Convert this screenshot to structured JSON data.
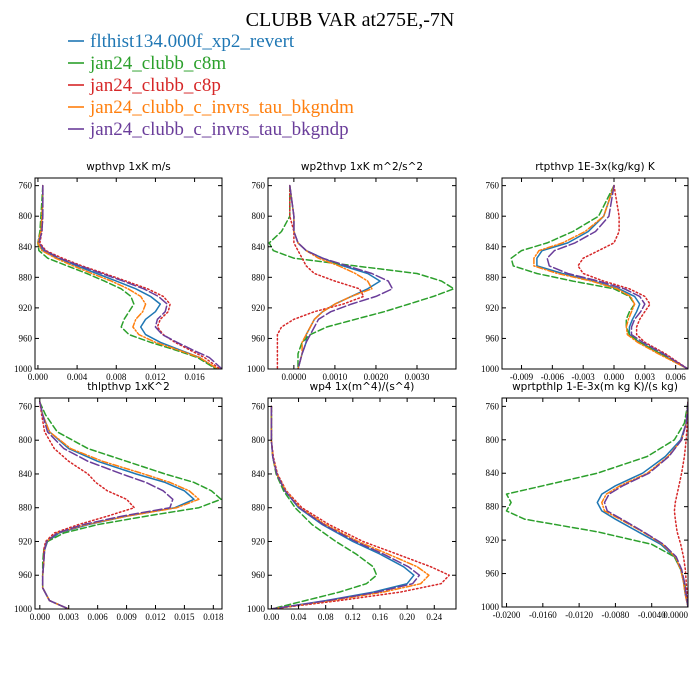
{
  "figure": {
    "title": "CLUBB VAR at275E,-7N"
  },
  "legend": [
    {
      "label": "flthist134.000f_xp2_revert",
      "color": "#1f77b4",
      "dash": "solid"
    },
    {
      "label": "jan24_clubb_c8m",
      "color": "#2ca02c",
      "dash": "dashed"
    },
    {
      "label": "jan24_clubb_c8p",
      "color": "#d62728",
      "dash": "dotted"
    },
    {
      "label": "jan24_clubb_c_invrs_tau_bkgndm",
      "color": "#ff7f0e",
      "dash": "dashdot"
    },
    {
      "label": "jan24_clubb_c_invrs_tau_bkgndp",
      "color": "#6a3d9a",
      "dash": "longdash"
    }
  ],
  "chart_data": [
    {
      "type": "line",
      "title": "wpthvp   1xK m/s",
      "xlim": [
        -0.0003,
        0.0188
      ],
      "ylim": [
        1000,
        750
      ],
      "xticks": [
        0.0,
        0.004,
        0.008,
        0.012,
        0.016
      ],
      "xticklabels": [
        "0.000",
        "0.004",
        "0.008",
        "0.012",
        "0.016"
      ],
      "yticks": [
        760,
        800,
        840,
        880,
        920,
        960,
        1000
      ],
      "yticklabels": [
        "760",
        "800",
        "840",
        "880",
        "920",
        "960",
        "1000"
      ],
      "y": [
        760,
        780,
        800,
        820,
        835,
        845,
        855,
        865,
        875,
        885,
        895,
        905,
        915,
        925,
        935,
        945,
        955,
        965,
        975,
        985,
        1000
      ],
      "series": [
        {
          "values": [
            0.0005,
            0.0005,
            0.0004,
            0.0003,
            0.0,
            0.0005,
            0.002,
            0.004,
            0.006,
            0.008,
            0.01,
            0.0115,
            0.0125,
            0.012,
            0.011,
            0.0105,
            0.011,
            0.0125,
            0.0145,
            0.0165,
            0.0183
          ]
        },
        {
          "values": [
            0.0005,
            0.0004,
            0.0003,
            0.0002,
            0.0,
            0.0001,
            0.001,
            0.003,
            0.005,
            0.0068,
            0.0085,
            0.0095,
            0.0098,
            0.0093,
            0.0088,
            0.0085,
            0.0093,
            0.0115,
            0.014,
            0.0163,
            0.0182
          ]
        },
        {
          "values": [
            0.0005,
            0.0005,
            0.0005,
            0.0004,
            0.0002,
            0.0008,
            0.0025,
            0.0045,
            0.0068,
            0.009,
            0.0112,
            0.0128,
            0.0135,
            0.0133,
            0.0125,
            0.0122,
            0.0128,
            0.014,
            0.0155,
            0.017,
            0.0186
          ]
        },
        {
          "values": [
            0.0005,
            0.0005,
            0.0004,
            0.0003,
            0.0,
            0.0004,
            0.0018,
            0.0036,
            0.0055,
            0.0075,
            0.0092,
            0.0105,
            0.011,
            0.0107,
            0.01,
            0.0097,
            0.0103,
            0.012,
            0.0143,
            0.0165,
            0.0184
          ]
        },
        {
          "values": [
            0.0005,
            0.0005,
            0.0005,
            0.0004,
            0.0001,
            0.0007,
            0.0022,
            0.0043,
            0.0065,
            0.0087,
            0.0108,
            0.0123,
            0.0132,
            0.013,
            0.0122,
            0.012,
            0.0127,
            0.0142,
            0.0158,
            0.0175,
            0.0188
          ]
        }
      ]
    },
    {
      "type": "line",
      "title": "wp2thvp   1xK m^2/s^2",
      "xlim": [
        -0.00063,
        0.00395
      ],
      "ylim": [
        1000,
        750
      ],
      "xticks": [
        0.0,
        0.001,
        0.002,
        0.003
      ],
      "xticklabels": [
        "0.0000",
        "0.0010",
        "0.0020",
        "0.0030"
      ],
      "yticks": [
        760,
        800,
        840,
        880,
        920,
        960,
        1000
      ],
      "yticklabels": [
        "760",
        "800",
        "840",
        "880",
        "920",
        "960",
        "1000"
      ],
      "y": [
        760,
        800,
        820,
        835,
        845,
        855,
        865,
        875,
        885,
        895,
        905,
        915,
        925,
        935,
        945,
        955,
        965,
        980,
        1000
      ],
      "series": [
        {
          "values": [
            -0.0001,
            0.0,
            0.0,
            0.0001,
            0.0003,
            0.0007,
            0.0012,
            0.0018,
            0.0021,
            0.0018,
            0.0014,
            0.001,
            0.0007,
            0.0005,
            0.0004,
            0.0003,
            0.0003,
            0.0002,
            0.0001
          ]
        },
        {
          "values": [
            -0.0001,
            -0.0001,
            -0.0003,
            -0.0006,
            -0.0005,
            0.0,
            0.0015,
            0.003,
            0.0036,
            0.0039,
            0.0034,
            0.0028,
            0.0022,
            0.0015,
            0.0008,
            0.0004,
            0.0002,
            0.0001,
            0.0001
          ]
        },
        {
          "values": [
            -0.0001,
            -0.0001,
            0.0,
            0.0,
            0.0001,
            0.0002,
            0.0003,
            0.0005,
            0.001,
            0.0016,
            0.0017,
            0.0012,
            0.0005,
            0.0,
            -0.0003,
            -0.0004,
            -0.0004,
            -0.0004,
            -0.0004
          ]
        },
        {
          "values": [
            -0.0001,
            0.0,
            0.0,
            0.0001,
            0.0003,
            0.0006,
            0.0011,
            0.0015,
            0.0018,
            0.0019,
            0.0014,
            0.001,
            0.0007,
            0.0005,
            0.0004,
            0.0003,
            0.0002,
            0.0002,
            0.0001
          ]
        },
        {
          "values": [
            -0.0001,
            0.0,
            0.0,
            0.0001,
            0.0003,
            0.0007,
            0.0013,
            0.0019,
            0.0023,
            0.0024,
            0.002,
            0.0014,
            0.0009,
            0.0006,
            0.0005,
            0.0004,
            0.0003,
            0.0002,
            0.0001
          ]
        }
      ]
    },
    {
      "type": "line",
      "title": "rtpthvp   1E-3x(kg/kg) K",
      "xlim": [
        -0.0109,
        0.0072
      ],
      "ylim": [
        1000,
        750
      ],
      "xticks": [
        -0.009,
        -0.006,
        -0.003,
        0.0,
        0.003,
        0.006
      ],
      "xticklabels": [
        "-0.009",
        "-0.006",
        "-0.003",
        "0.000",
        "0.003",
        "0.006"
      ],
      "yticks": [
        760,
        800,
        840,
        880,
        920,
        960,
        1000
      ],
      "yticklabels": [
        "760",
        "800",
        "840",
        "880",
        "920",
        "960",
        "1000"
      ],
      "y": [
        760,
        800,
        820,
        835,
        845,
        855,
        865,
        875,
        885,
        895,
        905,
        915,
        925,
        935,
        945,
        955,
        965,
        980,
        1000
      ],
      "series": [
        {
          "values": [
            0.0,
            -0.001,
            -0.0025,
            -0.0045,
            -0.007,
            -0.0075,
            -0.0075,
            -0.005,
            -0.002,
            0.0005,
            0.002,
            0.0025,
            0.0022,
            0.0018,
            0.0015,
            0.0015,
            0.0025,
            0.0045,
            0.0072
          ]
        },
        {
          "values": [
            0.0,
            -0.0015,
            -0.004,
            -0.0065,
            -0.009,
            -0.01,
            -0.0098,
            -0.0075,
            -0.004,
            0.0,
            0.0015,
            0.002,
            0.0015,
            0.0012,
            0.0012,
            0.0015,
            0.0025,
            0.0045,
            0.0072
          ]
        },
        {
          "values": [
            0.0,
            0.0005,
            0.0005,
            0.0,
            -0.0015,
            -0.003,
            -0.0035,
            -0.003,
            -0.001,
            0.0015,
            0.003,
            0.0035,
            0.003,
            0.0025,
            0.0022,
            0.0022,
            0.003,
            0.005,
            0.0072
          ]
        },
        {
          "values": [
            0.0,
            -0.001,
            -0.0028,
            -0.005,
            -0.0073,
            -0.0078,
            -0.0078,
            -0.0055,
            -0.0022,
            0.0003,
            0.0016,
            0.002,
            0.0017,
            0.0014,
            0.0012,
            0.0013,
            0.0023,
            0.0043,
            0.0072
          ]
        },
        {
          "values": [
            0.0,
            -0.0005,
            -0.0018,
            -0.0038,
            -0.0058,
            -0.0065,
            -0.0063,
            -0.0045,
            -0.0015,
            0.001,
            0.0025,
            0.003,
            0.0026,
            0.002,
            0.0017,
            0.0017,
            0.0028,
            0.0048,
            0.0072
          ]
        }
      ]
    },
    {
      "type": "line",
      "title": "thlpthvp   1xK^2",
      "xlim": [
        -0.0005,
        0.0189
      ],
      "ylim": [
        1000,
        750
      ],
      "xticks": [
        0.0,
        0.003,
        0.006,
        0.009,
        0.012,
        0.015,
        0.018
      ],
      "xticklabels": [
        "0.000",
        "0.003",
        "0.006",
        "0.009",
        "0.012",
        "0.015",
        "0.018"
      ],
      "yticks": [
        760,
        800,
        840,
        880,
        920,
        960,
        1000
      ],
      "yticklabels": [
        "760",
        "800",
        "840",
        "880",
        "920",
        "960",
        "1000"
      ],
      "y": [
        755,
        770,
        790,
        810,
        825,
        840,
        850,
        860,
        870,
        880,
        890,
        900,
        910,
        920,
        930,
        945,
        960,
        975,
        990,
        1000
      ],
      "series": [
        {
          "values": [
            0.0,
            0.0003,
            0.001,
            0.003,
            0.006,
            0.01,
            0.013,
            0.015,
            0.016,
            0.014,
            0.009,
            0.005,
            0.002,
            0.0008,
            0.0005,
            0.0004,
            0.0003,
            0.0003,
            0.001,
            0.003
          ]
        },
        {
          "values": [
            0.0,
            0.0006,
            0.0018,
            0.005,
            0.009,
            0.013,
            0.016,
            0.0178,
            0.0188,
            0.0165,
            0.011,
            0.006,
            0.0025,
            0.0008,
            0.0004,
            0.0003,
            0.0003,
            0.0003,
            0.001,
            0.003
          ]
        },
        {
          "values": [
            0.0,
            0.0002,
            0.0005,
            0.0015,
            0.003,
            0.005,
            0.0058,
            0.007,
            0.009,
            0.0098,
            0.007,
            0.004,
            0.0015,
            0.0006,
            0.0004,
            0.0004,
            0.0003,
            0.0003,
            0.001,
            0.003
          ]
        },
        {
          "values": [
            0.0,
            0.0003,
            0.001,
            0.0032,
            0.0065,
            0.0108,
            0.0135,
            0.0155,
            0.0165,
            0.0142,
            0.009,
            0.0048,
            0.0018,
            0.0007,
            0.0005,
            0.0004,
            0.0003,
            0.0003,
            0.001,
            0.003
          ]
        },
        {
          "values": [
            0.0,
            0.0003,
            0.0008,
            0.0025,
            0.005,
            0.0085,
            0.011,
            0.0128,
            0.0138,
            0.0135,
            0.0085,
            0.0045,
            0.0018,
            0.0007,
            0.0005,
            0.0004,
            0.0003,
            0.0003,
            0.001,
            0.003
          ]
        }
      ]
    },
    {
      "type": "line",
      "title": "wp4   1x(m^4)/(s^4)",
      "xlim": [
        -0.005,
        0.272
      ],
      "ylim": [
        1000,
        750
      ],
      "xticks": [
        0.0,
        0.04,
        0.08,
        0.12,
        0.16,
        0.2,
        0.24
      ],
      "xticklabels": [
        "0.00",
        "0.04",
        "0.08",
        "0.12",
        "0.16",
        "0.20",
        "0.24"
      ],
      "yticks": [
        760,
        800,
        840,
        880,
        920,
        960,
        1000
      ],
      "yticklabels": [
        "760",
        "800",
        "840",
        "880",
        "920",
        "960",
        "1000"
      ],
      "y": [
        760,
        780,
        800,
        820,
        840,
        860,
        880,
        900,
        920,
        935,
        950,
        960,
        970,
        980,
        990,
        1000
      ],
      "series": [
        {
          "values": [
            0.0,
            0.0,
            0.0,
            0.002,
            0.008,
            0.02,
            0.04,
            0.075,
            0.12,
            0.16,
            0.195,
            0.21,
            0.2,
            0.15,
            0.08,
            0.0
          ]
        },
        {
          "values": [
            0.0,
            0.0,
            0.0,
            0.002,
            0.007,
            0.018,
            0.035,
            0.06,
            0.095,
            0.125,
            0.15,
            0.155,
            0.14,
            0.1,
            0.05,
            0.0
          ]
        },
        {
          "values": [
            0.0,
            0.0,
            0.0,
            0.003,
            0.009,
            0.022,
            0.045,
            0.085,
            0.135,
            0.185,
            0.235,
            0.262,
            0.25,
            0.19,
            0.1,
            0.0
          ]
        },
        {
          "values": [
            0.0,
            0.0,
            0.0,
            0.002,
            0.008,
            0.021,
            0.042,
            0.08,
            0.128,
            0.172,
            0.215,
            0.232,
            0.22,
            0.165,
            0.088,
            0.0
          ]
        },
        {
          "values": [
            0.0,
            0.0,
            0.0,
            0.002,
            0.008,
            0.02,
            0.041,
            0.077,
            0.124,
            0.165,
            0.202,
            0.218,
            0.208,
            0.156,
            0.083,
            0.0
          ]
        }
      ]
    },
    {
      "type": "line",
      "title": "wprtpthlp   1-E-3x(m kg K)/(s kg)",
      "xlim": [
        -0.0205,
        0.0
      ],
      "ylim": [
        1000,
        750
      ],
      "xticks": [
        -0.02,
        -0.016,
        -0.012,
        -0.008,
        -0.004,
        0.0
      ],
      "xticklabels": [
        "-0.0200",
        "-0.0160",
        "-0.0120",
        "-0.0080",
        "-0.0040",
        "0.0000"
      ],
      "yticks": [
        760,
        800,
        840,
        880,
        920,
        960,
        1000
      ],
      "yticklabels": [
        "760",
        "800",
        "840",
        "880",
        "920",
        "960",
        "1000"
      ],
      "y": [
        755,
        780,
        800,
        820,
        840,
        855,
        865,
        875,
        885,
        895,
        910,
        925,
        940,
        955,
        970,
        985,
        1000
      ],
      "series": [
        {
          "values": [
            0.0,
            -0.0002,
            -0.0008,
            -0.0025,
            -0.005,
            -0.008,
            -0.0095,
            -0.01,
            -0.0095,
            -0.008,
            -0.0055,
            -0.003,
            -0.0015,
            -0.0008,
            -0.0005,
            -0.0003,
            0.0
          ]
        },
        {
          "values": [
            0.0,
            -0.0004,
            -0.0015,
            -0.0045,
            -0.01,
            -0.016,
            -0.02,
            -0.0195,
            -0.02,
            -0.018,
            -0.01,
            -0.004,
            -0.0015,
            -0.0008,
            -0.0004,
            -0.0002,
            0.0
          ]
        },
        {
          "values": [
            0.0,
            -0.0001,
            -0.0002,
            -0.0004,
            -0.0007,
            -0.001,
            -0.0012,
            -0.0014,
            -0.0015,
            -0.0014,
            -0.0012,
            -0.0008,
            -0.0005,
            -0.0003,
            -0.0002,
            -0.0001,
            0.0
          ]
        },
        {
          "values": [
            0.0,
            -0.0002,
            -0.0007,
            -0.0022,
            -0.0045,
            -0.0075,
            -0.009,
            -0.0095,
            -0.0092,
            -0.0075,
            -0.005,
            -0.0028,
            -0.0014,
            -0.0008,
            -0.0005,
            -0.0003,
            0.0
          ]
        },
        {
          "values": [
            0.0,
            -0.0002,
            -0.0007,
            -0.0021,
            -0.0043,
            -0.0072,
            -0.0087,
            -0.0092,
            -0.0089,
            -0.0073,
            -0.0049,
            -0.0027,
            -0.0013,
            -0.0007,
            -0.0004,
            -0.0002,
            0.0
          ]
        }
      ]
    }
  ]
}
